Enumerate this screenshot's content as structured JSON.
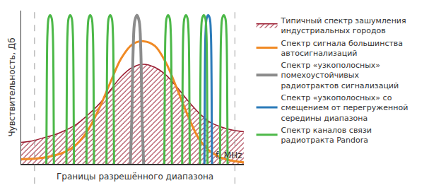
{
  "chart_data": {
    "type": "line",
    "ylabel": "Чувствительность, Дб",
    "xlabel": "f, MHz",
    "xlim": [
      0,
      100
    ],
    "ylim": [
      0,
      100
    ],
    "grid": false,
    "tick_labels": false,
    "legend": "right",
    "band": {
      "label": "Границы разрешённого диапазона",
      "x": [
        6,
        96
      ]
    },
    "series": [
      {
        "name": "Типичный спектр зашумления индустриальных городов",
        "type": "area",
        "color": "#9b1c31",
        "x": [
          0,
          5,
          10,
          15,
          20,
          25,
          30,
          35,
          40,
          45,
          50,
          55,
          60,
          65,
          70,
          75,
          80,
          85,
          90,
          95,
          100
        ],
        "values": [
          14,
          15,
          17,
          19,
          22,
          26,
          32,
          39,
          48,
          57,
          63,
          65,
          63,
          58,
          50,
          41,
          33,
          27,
          24,
          22,
          21
        ]
      },
      {
        "name": "Спектр сигнала большинства автосигнализаций",
        "type": "line",
        "color": "#f08a24",
        "x": [
          0,
          10,
          20,
          25,
          30,
          35,
          40,
          45,
          50,
          55,
          60,
          65,
          70,
          75,
          80,
          85,
          90,
          95,
          100
        ],
        "values": [
          3,
          4,
          8,
          13,
          22,
          36,
          53,
          69,
          78,
          80,
          77,
          66,
          49,
          31,
          16,
          8,
          4,
          2,
          1
        ]
      },
      {
        "name": "Спектр «узкополосных» помехоустойчивых радиотрактов сигнализаций",
        "type": "line",
        "color": "#8c8c8c",
        "x": [
          49,
          49.7,
          50.3,
          51,
          52,
          53,
          53.7,
          54.3,
          55
        ],
        "values": [
          0,
          30,
          75,
          93,
          97,
          93,
          75,
          30,
          0
        ]
      },
      {
        "name": "Спектр «узкополосных» со смещением от перегруженной середины диапазона",
        "type": "line",
        "color": "#2b7bb9",
        "x": [
          82.3,
          82.5,
          82.8,
          83.3,
          84,
          84.7,
          85.2,
          85.5,
          85.7
        ],
        "values": [
          0,
          55,
          85,
          95,
          97,
          95,
          85,
          55,
          0
        ]
      },
      {
        "name": "Спектр каналов связи радиотракта Pandora",
        "type": "line",
        "color": "#4cb848",
        "x": [
          11.3,
          11.5,
          11.8,
          12.3,
          13,
          13.7,
          14.2,
          14.5,
          14.7,
          null,
          20.3,
          20.5,
          20.8,
          21.3,
          22,
          22.7,
          23.2,
          23.5,
          23.7,
          null,
          29.3,
          29.5,
          29.8,
          30.3,
          31,
          31.7,
          32.2,
          32.5,
          32.7,
          null,
          38.3,
          38.5,
          38.8,
          39.3,
          40,
          40.7,
          41.2,
          41.5,
          41.7,
          null,
          64.3,
          64.5,
          64.8,
          65.3,
          66,
          66.7,
          67.2,
          67.5,
          67.7,
          null,
          72.3,
          72.5,
          72.8,
          73.3,
          74,
          74.7,
          75.2,
          75.5,
          75.7,
          null,
          80.3,
          80.5,
          80.8,
          81.3,
          82,
          82.7,
          83.2,
          83.5,
          83.7,
          null,
          89.3,
          89.5,
          89.8,
          90.3,
          91,
          91.7,
          92.2,
          92.5,
          92.7
        ],
        "values": [
          0,
          55,
          85,
          95,
          97,
          95,
          85,
          55,
          0,
          null,
          0,
          55,
          85,
          95,
          97,
          95,
          85,
          55,
          0,
          null,
          0,
          55,
          85,
          95,
          97,
          95,
          85,
          55,
          0,
          null,
          0,
          55,
          85,
          95,
          97,
          95,
          85,
          55,
          0,
          null,
          0,
          55,
          85,
          95,
          97,
          95,
          85,
          55,
          0,
          null,
          0,
          55,
          85,
          95,
          97,
          95,
          85,
          55,
          0,
          null,
          0,
          55,
          85,
          95,
          97,
          95,
          85,
          55,
          0,
          null,
          0,
          55,
          85,
          95,
          97,
          95,
          85,
          55,
          0
        ]
      }
    ]
  }
}
